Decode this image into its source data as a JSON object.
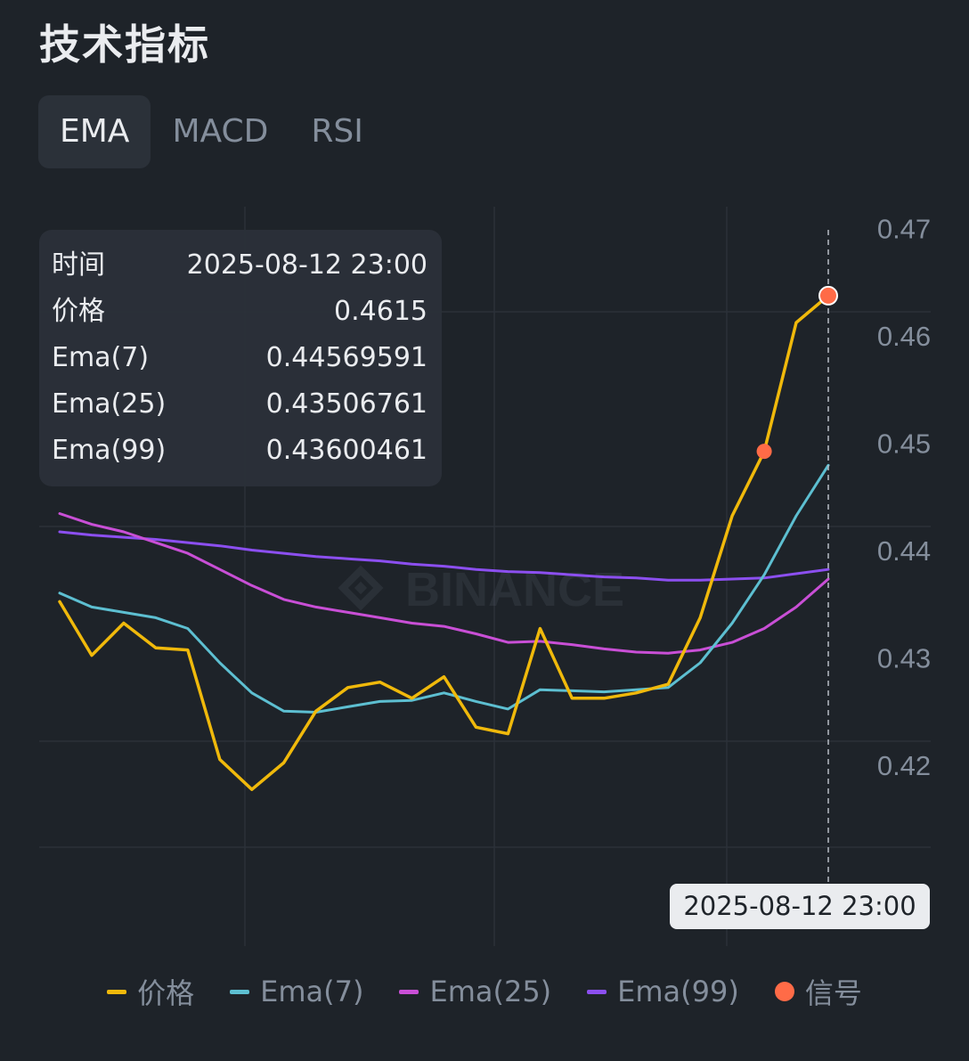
{
  "header": {
    "title": "技术指标"
  },
  "tabs": [
    {
      "label": "EMA",
      "active": true
    },
    {
      "label": "MACD",
      "active": false
    },
    {
      "label": "RSI",
      "active": false
    }
  ],
  "tooltip": {
    "rows": [
      {
        "label": "时间",
        "value": "2025-08-12 23:00"
      },
      {
        "label": "价格",
        "value": "0.4615"
      },
      {
        "label": "Ema(7)",
        "value": "0.44569591"
      },
      {
        "label": "Ema(25)",
        "value": "0.43506761"
      },
      {
        "label": "Ema(99)",
        "value": "0.43600461"
      }
    ]
  },
  "crosshair_label": "2025-08-12 23:00",
  "watermark": "BINANCE",
  "legend": [
    {
      "label": "价格",
      "kind": "line",
      "color": "#f0b90b"
    },
    {
      "label": "Ema(7)",
      "kind": "line",
      "color": "#5dbfd1"
    },
    {
      "label": "Ema(25)",
      "kind": "line",
      "color": "#c94fd6"
    },
    {
      "label": "Ema(99)",
      "kind": "line",
      "color": "#8c4ff0"
    },
    {
      "label": "信号",
      "kind": "dot",
      "color": "#ff6b47"
    }
  ],
  "chart_data": {
    "type": "line",
    "y_ticks": [
      "0.47",
      "0.46",
      "0.45",
      "0.44",
      "0.43",
      "0.42"
    ],
    "ylim": [
      0.4125,
      0.4725
    ],
    "grid": true,
    "legend_position": "bottom",
    "series": [
      {
        "name": "价格",
        "color": "#f0b90b",
        "values": [
          0.433,
          0.428,
          0.431,
          0.4287,
          0.4285,
          0.4183,
          0.4155,
          0.418,
          0.4228,
          0.425,
          0.4255,
          0.424,
          0.426,
          0.4213,
          0.4207,
          0.4305,
          0.424,
          0.424,
          0.4245,
          0.4253,
          0.4315,
          0.441,
          0.447,
          0.459,
          0.4615
        ]
      },
      {
        "name": "Ema(7)",
        "color": "#5dbfd1",
        "values": [
          0.4338,
          0.4325,
          0.432,
          0.4315,
          0.4305,
          0.4273,
          0.4245,
          0.4228,
          0.4227,
          0.4232,
          0.4237,
          0.4238,
          0.4245,
          0.4237,
          0.423,
          0.4248,
          0.4247,
          0.4246,
          0.4248,
          0.425,
          0.4273,
          0.431,
          0.4355,
          0.441,
          0.4457
        ]
      },
      {
        "name": "Ema(25)",
        "color": "#c94fd6",
        "values": [
          0.4412,
          0.4402,
          0.4395,
          0.4385,
          0.4375,
          0.436,
          0.4345,
          0.4332,
          0.4325,
          0.432,
          0.4315,
          0.431,
          0.4307,
          0.43,
          0.4292,
          0.4293,
          0.429,
          0.4286,
          0.4283,
          0.4282,
          0.4285,
          0.4292,
          0.4305,
          0.4325,
          0.4351
        ]
      },
      {
        "name": "Ema(99)",
        "color": "#8c4ff0",
        "values": [
          0.4395,
          0.4392,
          0.439,
          0.4388,
          0.4385,
          0.4382,
          0.4378,
          0.4375,
          0.4372,
          0.437,
          0.4368,
          0.4365,
          0.4363,
          0.436,
          0.4358,
          0.4357,
          0.4355,
          0.4353,
          0.4352,
          0.435,
          0.435,
          0.4351,
          0.4352,
          0.4356,
          0.436
        ]
      }
    ],
    "signals": [
      {
        "index": 22,
        "value": 0.447
      },
      {
        "index": 24,
        "value": 0.4615
      }
    ],
    "cursor_index": 24
  }
}
